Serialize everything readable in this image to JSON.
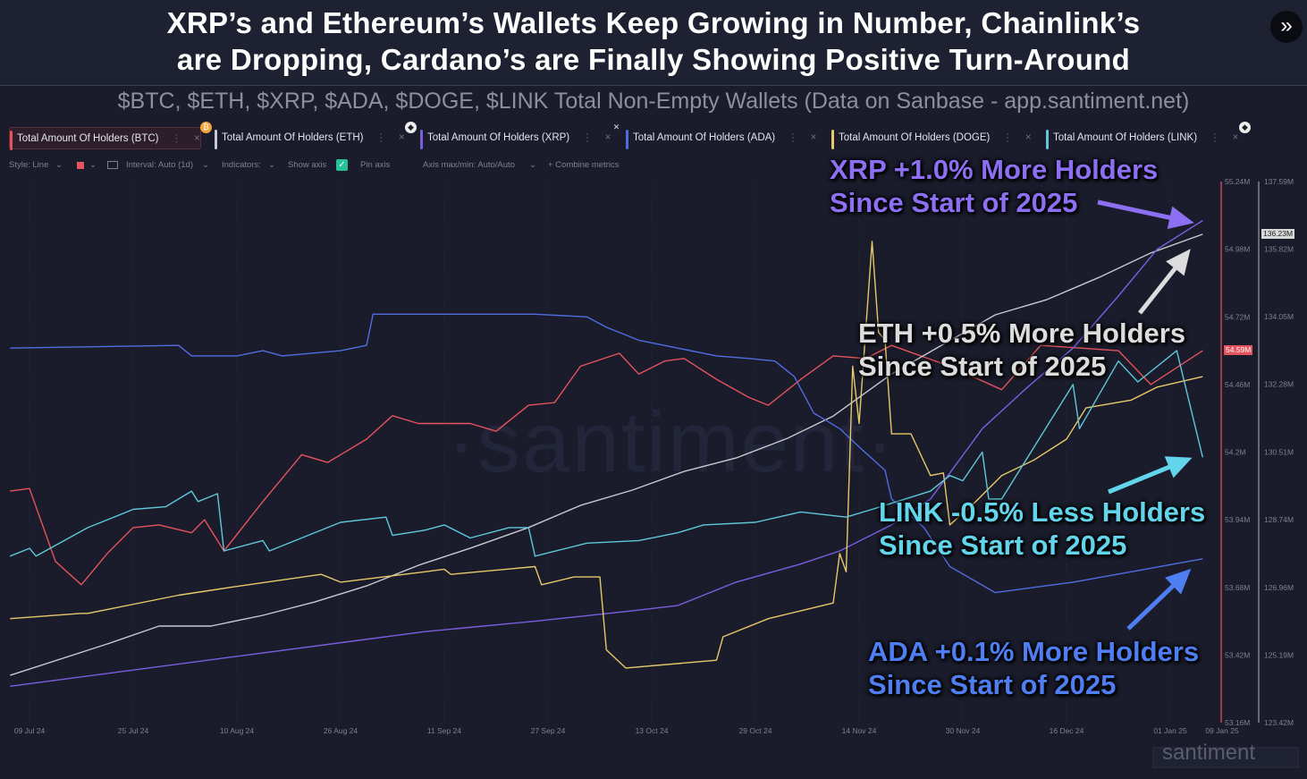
{
  "header": {
    "title_line1": "XRP’s and Ethereum’s Wallets Keep Growing in Number, Chainlink’s",
    "title_line2": "are Dropping, Cardano’s are Finally Showing Positive Turn-Around",
    "expand_icon": "double-chevron-right-icon"
  },
  "subtitle": "$BTC, $ETH, $XRP, $ADA, $DOGE, $LINK Total Non-Empty Wallets (Data on Sanbase - app.santiment.net)",
  "tabs": [
    {
      "label": "Total Amount Of Holders (BTC)",
      "color": "#e5535c"
    },
    {
      "label": "Total Amount Of Holders (ETH)",
      "color": "#c9c9cf"
    },
    {
      "label": "Total Amount Of Holders (XRP)",
      "color": "#7b5ee0"
    },
    {
      "label": "Total Amount Of Holders (ADA)",
      "color": "#4f6de0"
    },
    {
      "label": "Total Amount Of Holders (DOGE)",
      "color": "#e8c86a"
    },
    {
      "label": "Total Amount Of Holders (LINK)",
      "color": "#5ec8da"
    }
  ],
  "tab_menu": "⋮",
  "tab_close": "×",
  "toolbar": {
    "style": "Style: Line",
    "interval": "Interval: Auto (1d)",
    "indicators": "Indicators:",
    "show_axis": "Show axis",
    "pin_axis": "Pin axis",
    "axis_minmax": "Axis max/min: Auto/Auto",
    "combine": "+ Combine metrics",
    "chevron": "⌄",
    "check": "✓"
  },
  "watermark": "·santiment·",
  "logo": "santiment",
  "annotations": {
    "xrp": {
      "line1": "XRP +1.0% More Holders",
      "line2": "Since Start of 2025",
      "color": "#8c6ff2"
    },
    "eth": {
      "line1": "ETH +0.5% More Holders",
      "line2": "Since Start of 2025",
      "color": "#dcdcdc"
    },
    "link": {
      "line1": "LINK -0.5% Less Holders",
      "line2": "Since Start of 2025",
      "color": "#62d4ec"
    },
    "ada": {
      "line1": "ADA +0.1% More Holders",
      "line2": "Since Start of 2025",
      "color": "#4f7df2"
    }
  },
  "chart_data": {
    "type": "line",
    "grid": true,
    "x_ticks": [
      "09 Jul 24",
      "25 Jul 24",
      "10 Aug 24",
      "26 Aug 24",
      "11 Sep 24",
      "27 Sep 24",
      "13 Oct 24",
      "29 Oct 24",
      "14 Nov 24",
      "30 Nov 24",
      "16 Dec 24",
      "01 Jan 25",
      "09 Jan 25"
    ],
    "x_tick_dates": [
      "2024-07-09",
      "2024-07-25",
      "2024-08-10",
      "2024-08-26",
      "2024-09-11",
      "2024-09-27",
      "2024-10-13",
      "2024-10-29",
      "2024-11-14",
      "2024-11-30",
      "2024-12-16",
      "2025-01-01",
      "2025-01-09"
    ],
    "axes": {
      "left": {
        "min": 53.16,
        "max": 55.24,
        "ticks": [
          "55.24M",
          "54.98M",
          "54.72M",
          "54.46M",
          "54.2M",
          "53.94M",
          "53.68M",
          "53.42M",
          "53.16M"
        ],
        "current": "54.59M",
        "color": "#e5535c"
      },
      "right": {
        "min": 123.42,
        "max": 137.59,
        "ticks": [
          "137.59M",
          "135.82M",
          "134.05M",
          "132.28M",
          "130.51M",
          "128.74M",
          "126.96M",
          "125.19M",
          "123.42M"
        ],
        "current": "136.23M",
        "color": "#c9c9cf"
      }
    },
    "series": [
      {
        "name": "Total Amount Of Holders (BTC)",
        "axis": "left",
        "color": "#e5535c",
        "points": [
          [
            "2024-07-06",
            54.05
          ],
          [
            "2024-07-09",
            54.06
          ],
          [
            "2024-07-13",
            53.78
          ],
          [
            "2024-07-17",
            53.69
          ],
          [
            "2024-07-21",
            53.81
          ],
          [
            "2024-07-25",
            53.91
          ],
          [
            "2024-07-29",
            53.92
          ],
          [
            "2024-08-03",
            53.89
          ],
          [
            "2024-08-05",
            53.94
          ],
          [
            "2024-08-08",
            53.82
          ],
          [
            "2024-08-14",
            54.01
          ],
          [
            "2024-08-20",
            54.19
          ],
          [
            "2024-08-24",
            54.16
          ],
          [
            "2024-08-30",
            54.25
          ],
          [
            "2024-09-03",
            54.34
          ],
          [
            "2024-09-07",
            54.31
          ],
          [
            "2024-09-15",
            54.31
          ],
          [
            "2024-09-19",
            54.28
          ],
          [
            "2024-09-24",
            54.38
          ],
          [
            "2024-09-28",
            54.39
          ],
          [
            "2024-10-02",
            54.53
          ],
          [
            "2024-10-08",
            54.58
          ],
          [
            "2024-10-11",
            54.5
          ],
          [
            "2024-10-15",
            54.55
          ],
          [
            "2024-10-18",
            54.56
          ],
          [
            "2024-10-23",
            54.48
          ],
          [
            "2024-10-28",
            54.41
          ],
          [
            "2024-10-31",
            54.38
          ],
          [
            "2024-11-05",
            54.48
          ],
          [
            "2024-11-10",
            54.57
          ],
          [
            "2024-11-15",
            54.56
          ],
          [
            "2024-11-19",
            54.61
          ],
          [
            "2024-11-28",
            54.53
          ],
          [
            "2024-12-06",
            54.44
          ],
          [
            "2024-12-12",
            54.61
          ],
          [
            "2024-12-24",
            54.59
          ],
          [
            "2024-12-29",
            54.46
          ],
          [
            "2025-01-06",
            54.59
          ]
        ]
      },
      {
        "name": "Total Amount Of Holders (ETH)",
        "axis": "right",
        "color": "#c9c9cf",
        "points": [
          [
            "2024-07-06",
            124.66
          ],
          [
            "2024-07-21",
            125.48
          ],
          [
            "2024-07-29",
            125.95
          ],
          [
            "2024-08-06",
            125.95
          ],
          [
            "2024-08-14",
            126.23
          ],
          [
            "2024-08-22",
            126.58
          ],
          [
            "2024-08-30",
            127.0
          ],
          [
            "2024-09-07",
            127.54
          ],
          [
            "2024-09-15",
            127.99
          ],
          [
            "2024-09-24",
            128.53
          ],
          [
            "2024-10-02",
            129.11
          ],
          [
            "2024-10-10",
            129.51
          ],
          [
            "2024-10-18",
            130.0
          ],
          [
            "2024-10-26",
            130.35
          ],
          [
            "2024-11-03",
            130.87
          ],
          [
            "2024-11-10",
            131.45
          ],
          [
            "2024-11-19",
            132.55
          ],
          [
            "2024-11-27",
            133.33
          ],
          [
            "2024-12-05",
            134.1
          ],
          [
            "2024-12-13",
            134.5
          ],
          [
            "2024-12-21",
            135.08
          ],
          [
            "2024-12-29",
            135.72
          ],
          [
            "2025-01-06",
            136.21
          ]
        ]
      },
      {
        "name": "Total Amount Of Holders (XRP)",
        "axis": "left",
        "color": "#7b5ee0",
        "points": [
          [
            "2024-07-06",
            53.3
          ],
          [
            "2024-09-08",
            53.51
          ],
          [
            "2024-09-25",
            53.55
          ],
          [
            "2024-10-10",
            53.59
          ],
          [
            "2024-10-17",
            53.61
          ],
          [
            "2024-10-26",
            53.7
          ],
          [
            "2024-11-05",
            53.77
          ],
          [
            "2024-11-11",
            53.82
          ],
          [
            "2024-11-19",
            53.92
          ],
          [
            "2024-11-25",
            54.02
          ],
          [
            "2024-11-28",
            54.12
          ],
          [
            "2024-12-03",
            54.29
          ],
          [
            "2024-12-10",
            54.45
          ],
          [
            "2024-12-17",
            54.6
          ],
          [
            "2024-12-24",
            54.8
          ],
          [
            "2024-12-30",
            54.98
          ],
          [
            "2025-01-06",
            55.09
          ]
        ]
      },
      {
        "name": "Total Amount Of Holders (ADA)",
        "axis": "left",
        "color": "#4f6de0",
        "points": [
          [
            "2024-07-06",
            54.6
          ],
          [
            "2024-08-01",
            54.61
          ],
          [
            "2024-08-03",
            54.57
          ],
          [
            "2024-08-10",
            54.57
          ],
          [
            "2024-08-14",
            54.59
          ],
          [
            "2024-08-17",
            54.57
          ],
          [
            "2024-08-26",
            54.59
          ],
          [
            "2024-08-30",
            54.61
          ],
          [
            "2024-08-31",
            54.73
          ],
          [
            "2024-09-25",
            54.73
          ],
          [
            "2024-10-03",
            54.72
          ],
          [
            "2024-10-06",
            54.68
          ],
          [
            "2024-10-11",
            54.63
          ],
          [
            "2024-10-17",
            54.6
          ],
          [
            "2024-10-23",
            54.57
          ],
          [
            "2024-10-28",
            54.56
          ],
          [
            "2024-11-01",
            54.55
          ],
          [
            "2024-11-04",
            54.49
          ],
          [
            "2024-11-07",
            54.35
          ],
          [
            "2024-11-11",
            54.29
          ],
          [
            "2024-11-14",
            54.22
          ],
          [
            "2024-11-18",
            54.13
          ],
          [
            "2024-11-19",
            54.02
          ],
          [
            "2024-11-24",
            53.91
          ],
          [
            "2024-11-28",
            53.76
          ],
          [
            "2024-12-05",
            53.66
          ],
          [
            "2024-12-17",
            53.7
          ],
          [
            "2024-12-26",
            53.74
          ],
          [
            "2025-01-06",
            53.79
          ]
        ]
      },
      {
        "name": "Total Amount Of Holders (DOGE)",
        "axis": "left",
        "color": "#e8c86a",
        "points": [
          [
            "2024-07-06",
            53.56
          ],
          [
            "2024-07-17",
            53.58
          ],
          [
            "2024-07-18",
            53.58
          ],
          [
            "2024-08-01",
            53.65
          ],
          [
            "2024-08-09",
            53.68
          ],
          [
            "2024-08-23",
            53.73
          ],
          [
            "2024-08-26",
            53.7
          ],
          [
            "2024-09-08",
            53.74
          ],
          [
            "2024-09-11",
            53.75
          ],
          [
            "2024-09-12",
            53.73
          ],
          [
            "2024-09-25",
            53.76
          ],
          [
            "2024-09-26",
            53.69
          ],
          [
            "2024-10-01",
            53.72
          ],
          [
            "2024-10-05",
            53.72
          ],
          [
            "2024-10-06",
            53.44
          ],
          [
            "2024-10-09",
            53.37
          ],
          [
            "2024-10-23",
            53.4
          ],
          [
            "2024-10-24",
            53.49
          ],
          [
            "2024-10-31",
            53.56
          ],
          [
            "2024-11-05",
            53.59
          ],
          [
            "2024-11-10",
            53.62
          ],
          [
            "2024-11-11",
            53.81
          ],
          [
            "2024-11-12",
            53.74
          ],
          [
            "2024-11-13",
            54.53
          ],
          [
            "2024-11-14",
            54.31
          ],
          [
            "2024-11-16",
            55.01
          ],
          [
            "2024-11-17",
            54.66
          ],
          [
            "2024-11-18",
            54.63
          ],
          [
            "2024-11-19",
            54.27
          ],
          [
            "2024-11-22",
            54.27
          ],
          [
            "2024-11-25",
            54.11
          ],
          [
            "2024-11-27",
            54.12
          ],
          [
            "2024-11-28",
            53.92
          ],
          [
            "2024-12-02",
            54.01
          ],
          [
            "2024-12-06",
            54.11
          ],
          [
            "2024-12-11",
            54.17
          ],
          [
            "2024-12-16",
            54.25
          ],
          [
            "2024-12-19",
            54.37
          ],
          [
            "2024-12-26",
            54.4
          ],
          [
            "2024-12-30",
            54.45
          ],
          [
            "2025-01-06",
            54.49
          ]
        ]
      },
      {
        "name": "Total Amount Of Holders (LINK)",
        "axis": "left",
        "color": "#5ec8da",
        "points": [
          [
            "2024-07-06",
            53.8
          ],
          [
            "2024-07-09",
            53.83
          ],
          [
            "2024-07-10",
            53.8
          ],
          [
            "2024-07-18",
            53.91
          ],
          [
            "2024-07-25",
            53.98
          ],
          [
            "2024-07-30",
            53.99
          ],
          [
            "2024-08-03",
            54.05
          ],
          [
            "2024-08-04",
            54.01
          ],
          [
            "2024-08-07",
            54.04
          ],
          [
            "2024-08-08",
            53.82
          ],
          [
            "2024-08-14",
            53.86
          ],
          [
            "2024-08-15",
            53.82
          ],
          [
            "2024-08-26",
            53.93
          ],
          [
            "2024-09-02",
            53.95
          ],
          [
            "2024-09-03",
            53.88
          ],
          [
            "2024-09-08",
            53.9
          ],
          [
            "2024-09-11",
            53.92
          ],
          [
            "2024-09-15",
            53.87
          ],
          [
            "2024-09-21",
            53.91
          ],
          [
            "2024-09-24",
            53.91
          ],
          [
            "2024-09-25",
            53.8
          ],
          [
            "2024-10-03",
            53.85
          ],
          [
            "2024-10-11",
            53.86
          ],
          [
            "2024-10-17",
            53.89
          ],
          [
            "2024-10-21",
            53.92
          ],
          [
            "2024-10-29",
            53.93
          ],
          [
            "2024-11-05",
            53.97
          ],
          [
            "2024-11-12",
            53.95
          ],
          [
            "2024-11-16",
            53.98
          ],
          [
            "2024-11-25",
            54.05
          ],
          [
            "2024-11-28",
            54.11
          ],
          [
            "2024-11-30",
            54.09
          ],
          [
            "2024-12-03",
            54.2
          ],
          [
            "2024-12-04",
            54.02
          ],
          [
            "2024-12-06",
            54.02
          ],
          [
            "2024-12-17",
            54.46
          ],
          [
            "2024-12-18",
            54.29
          ],
          [
            "2024-12-24",
            54.55
          ],
          [
            "2024-12-27",
            54.47
          ],
          [
            "2025-01-02",
            54.59
          ],
          [
            "2025-01-06",
            54.18
          ]
        ]
      }
    ]
  }
}
